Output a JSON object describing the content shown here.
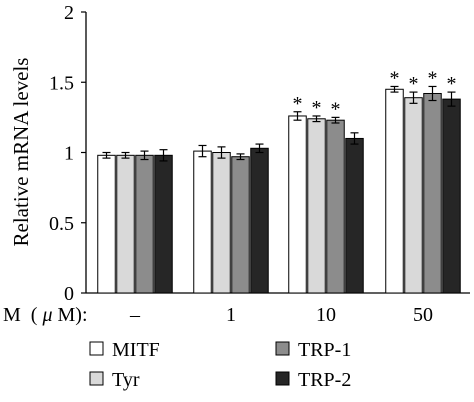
{
  "chart_data": {
    "type": "bar",
    "title": "",
    "ylabel": "Relative mRNA levels",
    "xlabel_prefix": "M",
    "xlabel_unit_symbol": "μ",
    "xlabel_unit_rest": "M):",
    "xlabel_paren": "(",
    "ylim": [
      0,
      2
    ],
    "yticks": [
      "0",
      "0.5",
      "1",
      "1.5",
      "2"
    ],
    "categories": [
      "–",
      "1",
      "10",
      "50"
    ],
    "grid": false,
    "legend_position": "bottom",
    "significance_marker": "*",
    "series": [
      {
        "name": "MITF",
        "color": "#ffffff",
        "values": [
          0.98,
          1.01,
          1.26,
          1.45
        ],
        "errors": [
          0.02,
          0.04,
          0.03,
          0.02
        ],
        "significant": [
          false,
          false,
          true,
          true
        ]
      },
      {
        "name": "Tyr",
        "color": "#d9d9d9",
        "values": [
          0.98,
          1.0,
          1.24,
          1.39
        ],
        "errors": [
          0.02,
          0.04,
          0.02,
          0.04
        ],
        "significant": [
          false,
          false,
          true,
          true
        ]
      },
      {
        "name": "TRP-1",
        "color": "#8c8c8c",
        "values": [
          0.98,
          0.97,
          1.23,
          1.42
        ],
        "errors": [
          0.03,
          0.02,
          0.02,
          0.05
        ],
        "significant": [
          false,
          false,
          true,
          true
        ]
      },
      {
        "name": "TRP-2",
        "color": "#262626",
        "values": [
          0.98,
          1.03,
          1.1,
          1.38
        ],
        "errors": [
          0.04,
          0.03,
          0.04,
          0.05
        ],
        "significant": [
          false,
          false,
          false,
          true
        ]
      }
    ]
  }
}
